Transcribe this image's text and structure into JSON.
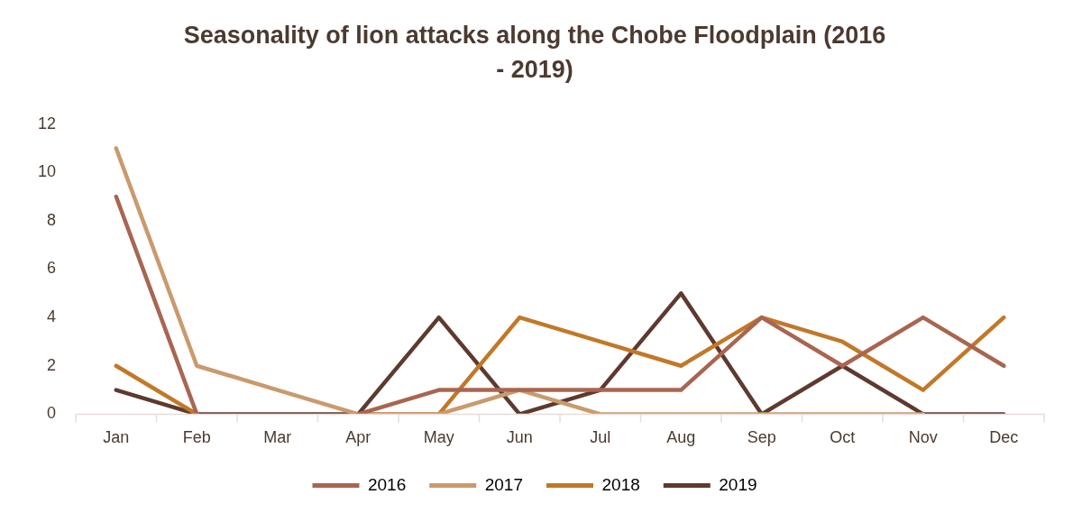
{
  "chart_data": {
    "type": "line",
    "title": "Seasonality of lion attacks along the Chobe Floodplain (2016 - 2019)",
    "categories": [
      "Jan",
      "Feb",
      "Mar",
      "Apr",
      "May",
      "Jun",
      "Jul",
      "Aug",
      "Sep",
      "Oct",
      "Nov",
      "Dec"
    ],
    "series": [
      {
        "name": "2016",
        "color": "#a86650",
        "values": [
          9,
          0,
          null,
          0,
          1,
          1,
          1,
          1,
          4,
          2,
          4,
          2
        ]
      },
      {
        "name": "2017",
        "color": "#c99a6c",
        "values": [
          11,
          2,
          1,
          0,
          0,
          1,
          0,
          0,
          0,
          0,
          0,
          null
        ]
      },
      {
        "name": "2018",
        "color": "#c27828",
        "values": [
          2,
          0,
          null,
          0,
          0,
          4,
          3,
          2,
          4,
          3,
          1,
          4
        ]
      },
      {
        "name": "2019",
        "color": "#5e3a2e",
        "values": [
          1,
          0,
          0,
          0,
          4,
          0,
          1,
          5,
          0,
          2,
          0,
          0
        ]
      }
    ],
    "ylim": [
      0,
      12
    ],
    "yticks": [
      0,
      2,
      4,
      6,
      8,
      10,
      12
    ],
    "grid": false,
    "legend": "bottom",
    "marker": "none",
    "line_style": "solid"
  }
}
